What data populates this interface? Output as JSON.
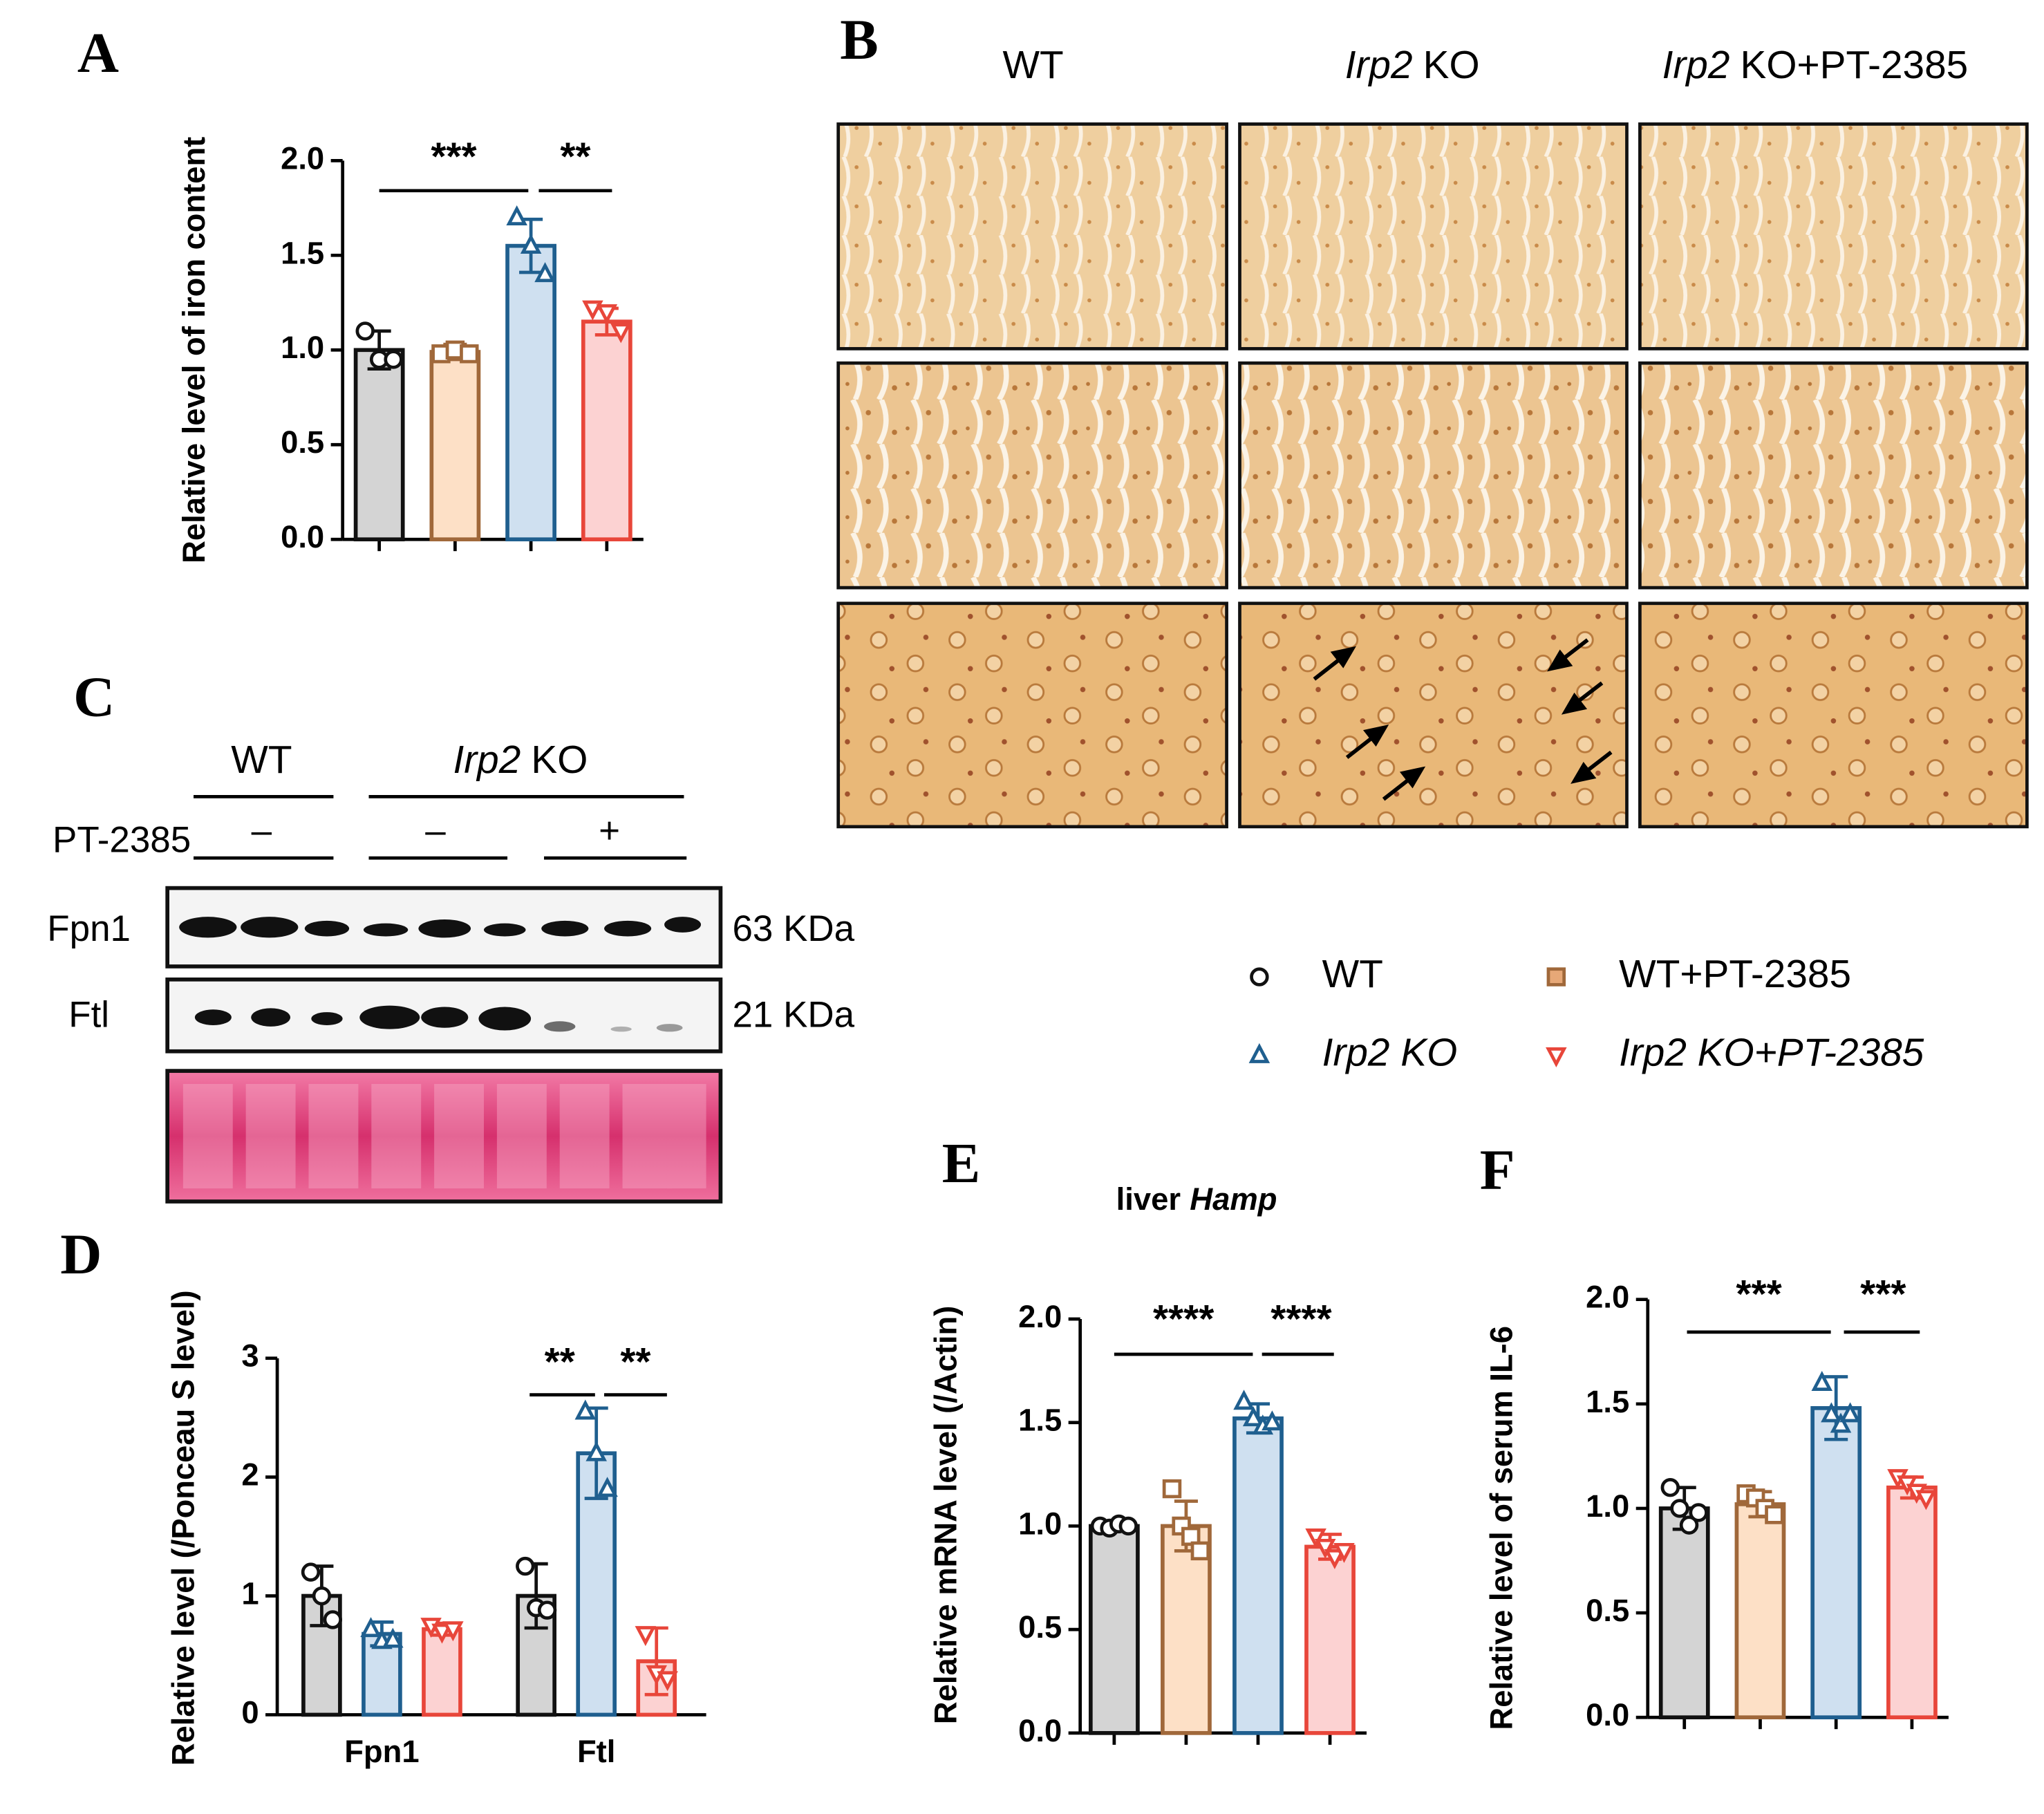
{
  "panel_labels": [
    "A",
    "B",
    "C",
    "D",
    "E",
    "F"
  ],
  "histology": {
    "columns": [
      {
        "text": "WT"
      },
      {
        "italic": "Irp2",
        "text": "KO"
      },
      {
        "italic": "Irp2",
        "text": "KO+PT-2385"
      }
    ]
  },
  "blot": {
    "groups": [
      {
        "text": "WT"
      },
      {
        "italic": "Irp2",
        "text": "KO"
      }
    ],
    "treatment_label": "PT-2385",
    "treatment": [
      "–",
      "–",
      "+"
    ],
    "rows": [
      {
        "label": "Fpn1",
        "size": "63 KDa"
      },
      {
        "label": "Ftl",
        "size": "21 KDa"
      }
    ]
  },
  "legend": [
    {
      "name": "WT",
      "color": "#111111",
      "marker": "circle",
      "italic": false
    },
    {
      "name": "WT+PT-2385",
      "color": "#a0683a",
      "marker": "square",
      "italic": false
    },
    {
      "name": "Irp2 KO",
      "color": "#1f5f8f",
      "marker": "triangle",
      "italic": true
    },
    {
      "name": "Irp2 KO+PT-2385",
      "color": "#e8463a",
      "marker": "triangle-down",
      "italic": true
    }
  ],
  "chart_data": [
    {
      "type": "bar",
      "y_label": "Relative level of iron content",
      "categories": [
        null
      ],
      "ylim": [
        0,
        2
      ],
      "yticks": [
        {
          "value": 0,
          "label": "0.0"
        },
        {
          "value": 0.5,
          "label": "0.5"
        },
        {
          "value": 1,
          "label": "1.0"
        },
        {
          "value": 1.5,
          "label": "1.5"
        },
        {
          "value": 2,
          "label": "2.0"
        }
      ],
      "annotations": [
        "***",
        "**"
      ],
      "series": [
        {
          "color": "#111111",
          "fill": "#d4d4d4",
          "marker": "circle",
          "values": [
            1.0
          ],
          "errors": [
            0.1
          ],
          "points": [
            [
              1.1,
              0.95,
              0.95
            ]
          ]
        },
        {
          "color": "#a0683a",
          "fill": "#fde0c6",
          "marker": "square",
          "values": [
            0.99
          ],
          "errors": [
            0.04
          ],
          "points": [
            [
              0.98,
              1.0,
              0.98
            ]
          ]
        },
        {
          "color": "#1f5f8f",
          "fill": "#cfe0f0",
          "marker": "triangle",
          "values": [
            1.55
          ],
          "errors": [
            0.14
          ],
          "points": [
            [
              1.7,
              1.55,
              1.4
            ]
          ]
        },
        {
          "color": "#e8463a",
          "fill": "#fcd2d2",
          "marker": "triangle-down",
          "values": [
            1.15
          ],
          "errors": [
            0.07
          ],
          "points": [
            [
              1.22,
              1.2,
              1.1
            ]
          ]
        }
      ]
    },
    {
      "type": "bar",
      "y_label": "Relative level (/Ponceau S level)",
      "categories": [
        "Fpn1",
        "Ftl"
      ],
      "ylim": [
        0,
        3
      ],
      "yticks": [
        0,
        1,
        2,
        3
      ],
      "annotations": [
        "**",
        "**"
      ],
      "series": [
        {
          "color": "#111111",
          "fill": "#d4d4d4",
          "marker": "circle",
          "values": [
            1.0,
            1.0
          ],
          "errors": [
            0.25,
            0.27
          ],
          "points": [
            [
              1.2,
              1.0,
              0.8
            ],
            [
              1.25,
              0.9,
              0.88
            ]
          ]
        },
        {
          "color": "#1f5f8f",
          "fill": "#cfe0f0",
          "marker": "triangle",
          "values": [
            0.68,
            2.2
          ],
          "errors": [
            0.1,
            0.38
          ],
          "points": [
            [
              0.72,
              0.62,
              0.63
            ],
            [
              2.55,
              2.2,
              1.9
            ]
          ]
        },
        {
          "color": "#e8463a",
          "fill": "#fcd2d2",
          "marker": "triangle-down",
          "values": [
            0.72,
            0.45
          ],
          "errors": [
            0.05,
            0.28
          ],
          "points": [
            [
              0.75,
              0.7,
              0.72
            ],
            [
              0.68,
              0.35,
              0.3
            ]
          ]
        }
      ]
    },
    {
      "type": "bar",
      "title": "liver",
      "title_italic": "Hamp",
      "y_label": "Relative mRNA level (/Actin)",
      "categories": [
        null
      ],
      "ylim": [
        0,
        2
      ],
      "yticks": [
        {
          "value": 0,
          "label": "0.0"
        },
        {
          "value": 0.5,
          "label": "0.5"
        },
        {
          "value": 1,
          "label": "1.0"
        },
        {
          "value": 1.5,
          "label": "1.5"
        },
        {
          "value": 2,
          "label": "2.0"
        }
      ],
      "annotations": [
        "****",
        "****"
      ],
      "series": [
        {
          "color": "#111111",
          "fill": "#d4d4d4",
          "marker": "circle",
          "values": [
            1.0
          ],
          "errors": [
            0.02
          ],
          "points": [
            [
              1.0,
              0.99,
              1.01,
              1.0
            ]
          ]
        },
        {
          "color": "#a0683a",
          "fill": "#fde0c6",
          "marker": "square",
          "values": [
            1.0
          ],
          "errors": [
            0.12
          ],
          "points": [
            [
              1.18,
              1.0,
              0.95,
              0.88
            ]
          ]
        },
        {
          "color": "#1f5f8f",
          "fill": "#cfe0f0",
          "marker": "triangle",
          "values": [
            1.52
          ],
          "errors": [
            0.07
          ],
          "points": [
            [
              1.6,
              1.52,
              1.48,
              1.5
            ]
          ]
        },
        {
          "color": "#e8463a",
          "fill": "#fcd2d2",
          "marker": "triangle-down",
          "values": [
            0.9
          ],
          "errors": [
            0.06
          ],
          "points": [
            [
              0.95,
              0.9,
              0.85,
              0.88
            ]
          ]
        }
      ]
    },
    {
      "type": "bar",
      "y_label": "Relative level of serum IL-6",
      "categories": [
        null
      ],
      "ylim": [
        0,
        2
      ],
      "yticks": [
        {
          "value": 0,
          "label": "0.0"
        },
        {
          "value": 0.5,
          "label": "0.5"
        },
        {
          "value": 1,
          "label": "1.0"
        },
        {
          "value": 1.5,
          "label": "1.5"
        },
        {
          "value": 2,
          "label": "2.0"
        }
      ],
      "annotations": [
        "***",
        "***"
      ],
      "series": [
        {
          "color": "#111111",
          "fill": "#d4d4d4",
          "marker": "circle",
          "values": [
            1.0
          ],
          "errors": [
            0.1
          ],
          "points": [
            [
              1.1,
              1.0,
              0.92,
              0.98
            ]
          ]
        },
        {
          "color": "#a0683a",
          "fill": "#fde0c6",
          "marker": "square",
          "values": [
            1.02
          ],
          "errors": [
            0.06
          ],
          "points": [
            [
              1.07,
              1.05,
              1.0,
              0.97
            ]
          ]
        },
        {
          "color": "#1f5f8f",
          "fill": "#cfe0f0",
          "marker": "triangle",
          "values": [
            1.48
          ],
          "errors": [
            0.15
          ],
          "points": [
            [
              1.6,
              1.45,
              1.4,
              1.45
            ]
          ]
        },
        {
          "color": "#e8463a",
          "fill": "#fcd2d2",
          "marker": "triangle-down",
          "values": [
            1.1
          ],
          "errors": [
            0.05
          ],
          "points": [
            [
              1.15,
              1.12,
              1.08,
              1.05
            ]
          ]
        }
      ]
    }
  ]
}
